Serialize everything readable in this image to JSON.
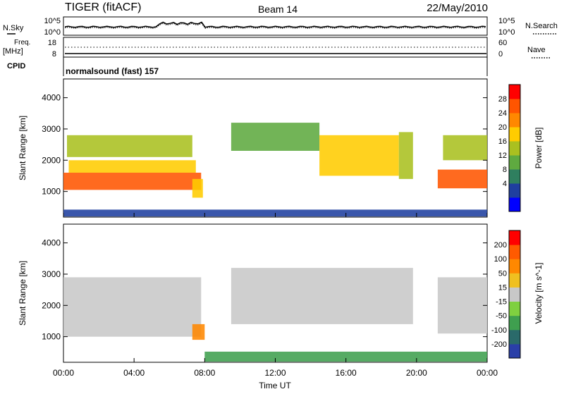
{
  "header": {
    "radar": "TIGER (fitACF)",
    "beam": "Beam 14",
    "date": "22/May/2010"
  },
  "noise_panel": {
    "left_label": "N.Sky",
    "left_ticks": [
      "10^5",
      "10^0"
    ],
    "right_label": "N.Search",
    "right_ticks": [
      "10^5",
      "10^0"
    ]
  },
  "freq_panel": {
    "left_label": "Freq.",
    "left_unit": "[MHz]",
    "left_ticks": [
      "18",
      "8"
    ],
    "right_label": "Nave",
    "right_ticks": [
      "60",
      "0"
    ],
    "cpid_label": "CPID"
  },
  "mode_text": "normalsound (fast) 157",
  "chart_data": [
    {
      "type": "heatmap",
      "name": "power",
      "ylabel": "Slant Range [km]",
      "yticks": [
        "4000",
        "3000",
        "2000",
        "1000"
      ],
      "ylim": [
        180,
        4600
      ],
      "xlim": [
        0,
        24
      ],
      "colorbar_label": "Power [dB]",
      "colorbar_ticks": [
        "28",
        "24",
        "20",
        "16",
        "12",
        "8",
        "4"
      ],
      "colorbar_colors": [
        "#0000ff",
        "#1f3f9f",
        "#2f7f5f",
        "#5faa40",
        "#aac020",
        "#ffcc00",
        "#ff8800",
        "#ff5500",
        "#ff0000"
      ],
      "bands": [
        {
          "t0": 0.0,
          "t1": 7.8,
          "r_lo": 1050,
          "r_hi": 1600,
          "v": 28
        },
        {
          "t0": 0.3,
          "t1": 7.5,
          "r_lo": 1600,
          "r_hi": 2000,
          "v": 20
        },
        {
          "t0": 0.2,
          "t1": 7.3,
          "r_lo": 2100,
          "r_hi": 2800,
          "v": 17
        },
        {
          "t0": 7.3,
          "t1": 7.9,
          "r_lo": 800,
          "r_hi": 1400,
          "v": 20
        },
        {
          "t0": 9.5,
          "t1": 14.5,
          "r_lo": 2300,
          "r_hi": 3200,
          "v": 12
        },
        {
          "t0": 14.5,
          "t1": 19.0,
          "r_lo": 1500,
          "r_hi": 2800,
          "v": 20
        },
        {
          "t0": 19.0,
          "t1": 19.8,
          "r_lo": 1400,
          "r_hi": 2900,
          "v": 18
        },
        {
          "t0": 21.2,
          "t1": 24.0,
          "r_lo": 1100,
          "r_hi": 1700,
          "v": 28
        },
        {
          "t0": 21.5,
          "t1": 24.0,
          "r_lo": 2000,
          "r_hi": 2800,
          "v": 16
        },
        {
          "t0": 0.0,
          "t1": 24.0,
          "r_lo": 200,
          "r_hi": 420,
          "v": 6
        }
      ]
    },
    {
      "type": "heatmap",
      "name": "velocity",
      "ylabel": "Slant Range [km]",
      "yticks": [
        "4000",
        "3000",
        "2000",
        "1000"
      ],
      "ylim": [
        180,
        4600
      ],
      "xlim": [
        0,
        24
      ],
      "colorbar_label": "Velocity [m s^-1]",
      "colorbar_ticks": [
        "200",
        "100",
        "50",
        "15",
        "-15",
        "-50",
        "-100",
        "-200"
      ],
      "colorbar_colors": [
        "#2a3fa8",
        "#2a6a6a",
        "#3f9f4f",
        "#7fd040",
        "#c8c8c8",
        "#f0c020",
        "#ff8800",
        "#ff5a00",
        "#ff0000"
      ],
      "bands": [
        {
          "t0": 0.0,
          "t1": 7.8,
          "r_lo": 1000,
          "r_hi": 2900,
          "v": 0
        },
        {
          "t0": 7.3,
          "t1": 8.0,
          "r_lo": 900,
          "r_hi": 1400,
          "v": 60
        },
        {
          "t0": 9.5,
          "t1": 19.8,
          "r_lo": 1400,
          "r_hi": 3200,
          "v": 0
        },
        {
          "t0": 21.2,
          "t1": 24.0,
          "r_lo": 1100,
          "r_hi": 2900,
          "v": 0
        },
        {
          "t0": 8.0,
          "t1": 24.0,
          "r_lo": 200,
          "r_hi": 520,
          "v": -55
        }
      ]
    }
  ],
  "xaxis": {
    "ticks": [
      "00:00",
      "04:00",
      "08:00",
      "12:00",
      "16:00",
      "20:00",
      "00:00"
    ],
    "label": "Time UT"
  }
}
